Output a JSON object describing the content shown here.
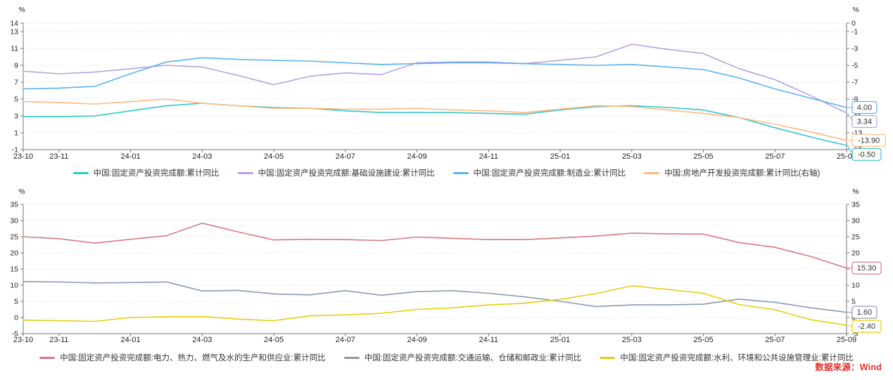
{
  "page": {
    "background": "#ffffff"
  },
  "footer": {
    "source": "数据来源：Wind",
    "color": "#e5302c"
  },
  "chart_data": [
    {
      "type": "line",
      "title": "",
      "unit_label": "%",
      "grid": "horizontal-dashed",
      "legend_position": "bottom",
      "x": [
        "23-10",
        "23-11",
        "23-12",
        "24-01",
        "24-02",
        "24-03",
        "24-04",
        "24-05",
        "24-06",
        "24-07",
        "24-08",
        "24-09",
        "24-10",
        "24-11",
        "24-12",
        "25-01",
        "25-02",
        "25-03",
        "25-04",
        "25-05",
        "25-06",
        "25-07",
        "25-08",
        "25-09"
      ],
      "x_tick_labels": [
        "23-10",
        "23-11",
        "24-01",
        "24-03",
        "24-05",
        "24-07",
        "24-09",
        "24-11",
        "25-01",
        "25-03",
        "25-05",
        "25-07",
        "25-09"
      ],
      "left_axis": {
        "min": -1,
        "max": 14,
        "ticks": [
          14,
          13,
          11,
          9,
          7,
          5,
          3,
          1,
          -1
        ]
      },
      "right_axis": {
        "min": -15,
        "max": 0,
        "ticks": [
          0,
          -1,
          -3,
          -5,
          -7,
          -9,
          -11,
          -13,
          -15
        ]
      },
      "series": [
        {
          "name": "中国:固定资产投资完成额:累计同比",
          "color": "#2ec7c9",
          "axis": "left",
          "end_label": "-0.50",
          "values": [
            2.9,
            2.9,
            3.0,
            3.6,
            4.2,
            4.5,
            4.2,
            4.0,
            3.9,
            3.6,
            3.4,
            3.4,
            3.4,
            3.3,
            3.2,
            3.7,
            4.1,
            4.2,
            4.0,
            3.7,
            2.8,
            1.6,
            0.5,
            -0.5
          ]
        },
        {
          "name": "中国:固定资产投资完成额:基础设施建设:累计同比",
          "color": "#b6a2de",
          "axis": "left",
          "end_label": "3.34",
          "values": [
            8.3,
            8.0,
            8.2,
            8.6,
            9.0,
            8.8,
            7.8,
            6.7,
            7.7,
            8.1,
            7.9,
            9.3,
            9.4,
            9.4,
            9.2,
            9.6,
            10.0,
            11.5,
            10.9,
            10.4,
            8.6,
            7.3,
            5.4,
            3.34
          ]
        },
        {
          "name": "中国:固定资产投资完成额:制造业:累计同比",
          "color": "#5ab1ef",
          "axis": "left",
          "end_label": "4.00",
          "values": [
            6.2,
            6.3,
            6.5,
            8.0,
            9.4,
            9.9,
            9.7,
            9.6,
            9.5,
            9.3,
            9.1,
            9.2,
            9.3,
            9.3,
            9.2,
            9.1,
            9.0,
            9.1,
            8.8,
            8.5,
            7.5,
            6.2,
            5.1,
            4.0
          ]
        },
        {
          "name": "中国:房地产开发投资完成额:累计同比(右轴)",
          "color": "#ffb980",
          "axis": "right",
          "end_label": "-13.90",
          "values": [
            -9.3,
            -9.4,
            -9.6,
            -9.3,
            -9.0,
            -9.5,
            -9.8,
            -10.1,
            -10.1,
            -10.2,
            -10.2,
            -10.1,
            -10.3,
            -10.4,
            -10.6,
            -10.2,
            -9.8,
            -9.9,
            -10.3,
            -10.7,
            -11.2,
            -12.0,
            -12.9,
            -13.9
          ]
        }
      ]
    },
    {
      "type": "line",
      "title": "",
      "unit_label": "%",
      "grid": "horizontal-dashed",
      "legend_position": "bottom",
      "x": [
        "23-10",
        "23-11",
        "23-12",
        "24-01",
        "24-02",
        "24-03",
        "24-04",
        "24-05",
        "24-06",
        "24-07",
        "24-08",
        "24-09",
        "24-10",
        "24-11",
        "24-12",
        "25-01",
        "25-02",
        "25-03",
        "25-04",
        "25-05",
        "25-06",
        "25-07",
        "25-08",
        "25-09"
      ],
      "x_tick_labels": [
        "23-10",
        "23-11",
        "24-01",
        "24-03",
        "24-05",
        "24-07",
        "24-09",
        "24-11",
        "25-01",
        "25-03",
        "25-05",
        "25-07",
        "25-09"
      ],
      "left_axis": {
        "min": -5,
        "max": 35,
        "ticks": [
          35,
          30,
          25,
          20,
          15,
          10,
          5,
          0,
          -5
        ]
      },
      "right_axis": {
        "min": -5,
        "max": 35,
        "ticks": [
          35,
          30,
          25,
          20,
          15,
          10,
          5,
          0,
          -5
        ]
      },
      "series": [
        {
          "name": "中国:固定资产投资完成额:电力、热力、燃气及水的生产和供应业:累计同比",
          "color": "#d87a80",
          "axis": "left",
          "end_label": "15.30",
          "values": [
            25.0,
            24.4,
            23.0,
            24.2,
            25.3,
            29.2,
            26.5,
            24.0,
            24.2,
            24.1,
            23.8,
            24.9,
            24.5,
            24.1,
            24.1,
            24.6,
            25.2,
            26.1,
            25.9,
            25.8,
            23.2,
            21.7,
            18.9,
            15.3
          ]
        },
        {
          "name": "中国:固定资产投资完成额:交通运输、仓储和邮政业:累计同比",
          "color": "#8d98b3",
          "axis": "left",
          "end_label": "1.60",
          "values": [
            11.1,
            11.0,
            10.7,
            10.8,
            11.0,
            8.2,
            8.4,
            7.3,
            7.0,
            8.3,
            6.9,
            8.0,
            8.3,
            7.5,
            6.4,
            5.0,
            3.4,
            3.9,
            3.9,
            4.1,
            5.7,
            4.7,
            3.0,
            1.6
          ]
        },
        {
          "name": "中国:固定资产投资完成额:水利、环境和公共设施管理业:累计同比",
          "color": "#e5cf0d",
          "axis": "left",
          "end_label": "-2.40",
          "values": [
            -0.8,
            -1.0,
            -1.2,
            0.0,
            0.2,
            0.3,
            -0.5,
            -1.0,
            0.5,
            0.8,
            1.3,
            2.5,
            3.0,
            3.9,
            4.4,
            5.6,
            7.4,
            9.8,
            8.7,
            7.5,
            4.0,
            2.4,
            -0.7,
            -2.4
          ]
        }
      ]
    }
  ]
}
